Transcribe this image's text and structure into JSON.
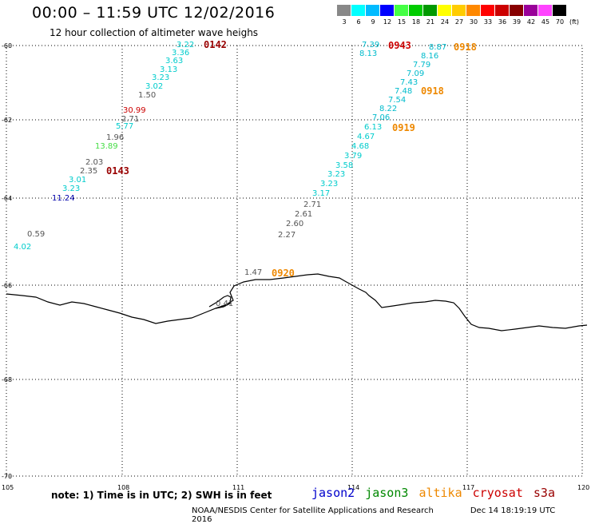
{
  "header": {
    "title": "00:00 – 11:59 UTC 12/02/2016",
    "subtitle": "12 hour collection of altimeter wave heighs"
  },
  "scale": {
    "colors": [
      "#888888",
      "#00ffff",
      "#00bbff",
      "#0000ff",
      "#44ff44",
      "#00cc00",
      "#009900",
      "#ffff00",
      "#ffcc00",
      "#ff8800",
      "#ff0000",
      "#cc0000",
      "#880000",
      "#990099",
      "#ff44ff",
      "#000000"
    ],
    "labels": [
      "3",
      "6",
      "9",
      "12",
      "15",
      "18",
      "21",
      "24",
      "27",
      "30",
      "33",
      "36",
      "39",
      "42",
      "45",
      "70",
      "(ft)"
    ]
  },
  "axes": {
    "lon_ticks": [
      "105",
      "108",
      "111",
      "114",
      "117",
      "120"
    ],
    "lat_ticks": [
      "-60",
      "-62",
      "-64",
      "-66",
      "-68",
      "-70"
    ]
  },
  "tracks": [
    {
      "v": "3.22",
      "c": "#00cccc"
    },
    {
      "v": "3.36",
      "c": "#00cccc"
    },
    {
      "v": "3.63",
      "c": "#00cccc"
    },
    {
      "v": "3.13",
      "c": "#00cccc"
    },
    {
      "v": "3.23",
      "c": "#00cccc"
    },
    {
      "v": "3.02",
      "c": "#00cccc"
    },
    {
      "v": "1.50",
      "c": "#555555"
    },
    {
      "v": "30.99",
      "c": "#cc0000"
    },
    {
      "v": "2.71",
      "c": "#555555"
    },
    {
      "v": "5.77",
      "c": "#00cccc"
    },
    {
      "v": "1.96",
      "c": "#555555"
    },
    {
      "v": "13.89",
      "c": "#44dd44"
    },
    {
      "v": "2.03",
      "c": "#555555"
    },
    {
      "v": "2.35",
      "c": "#555555"
    },
    {
      "v": "3.01",
      "c": "#00cccc"
    },
    {
      "v": "3.23",
      "c": "#00cccc"
    },
    {
      "v": "11.24",
      "c": "#0000aa"
    },
    {
      "v": "0.59",
      "c": "#555555"
    },
    {
      "v": "4.02",
      "c": "#00cccc"
    },
    {
      "v": "7.39",
      "c": "#00bbcc"
    },
    {
      "v": "8.13",
      "c": "#00bbcc"
    },
    {
      "v": "8.87",
      "c": "#00bbcc"
    },
    {
      "v": "8.16",
      "c": "#00bbcc"
    },
    {
      "v": "7.79",
      "c": "#00bbcc"
    },
    {
      "v": "7.09",
      "c": "#00bbcc"
    },
    {
      "v": "7.43",
      "c": "#00bbcc"
    },
    {
      "v": "7.48",
      "c": "#00bbcc"
    },
    {
      "v": "7.54",
      "c": "#00bbcc"
    },
    {
      "v": "8.22",
      "c": "#00bbcc"
    },
    {
      "v": "7.06",
      "c": "#00bbcc"
    },
    {
      "v": "6.13",
      "c": "#00cccc"
    },
    {
      "v": "4.67",
      "c": "#00cccc"
    },
    {
      "v": "4.68",
      "c": "#00cccc"
    },
    {
      "v": "3.79",
      "c": "#00cccc"
    },
    {
      "v": "3.58",
      "c": "#00cccc"
    },
    {
      "v": "3.23",
      "c": "#00cccc"
    },
    {
      "v": "3.23",
      "c": "#00cccc"
    },
    {
      "v": "3.17",
      "c": "#00cccc"
    },
    {
      "v": "2.71",
      "c": "#555555"
    },
    {
      "v": "2.61",
      "c": "#555555"
    },
    {
      "v": "2.60",
      "c": "#555555"
    },
    {
      "v": "2.27",
      "c": "#555555"
    },
    {
      "v": "1.47",
      "c": "#555555"
    },
    {
      "v": "0.41",
      "c": "#555555"
    }
  ],
  "pass_times": [
    {
      "t": "0142",
      "c": "#990000"
    },
    {
      "t": "0143",
      "c": "#990000"
    },
    {
      "t": "0943",
      "c": "#cc0000"
    },
    {
      "t": "0918",
      "c": "#ee8800"
    },
    {
      "t": "0918",
      "c": "#ee8800"
    },
    {
      "t": "0919",
      "c": "#ee8800"
    },
    {
      "t": "0920",
      "c": "#ee8800"
    }
  ],
  "footer": {
    "note": "note: 1) Time is in UTC; 2) SWH is in feet",
    "legend": [
      {
        "name": "jason2",
        "color": "#0000cc"
      },
      {
        "name": "jason3",
        "color": "#008800"
      },
      {
        "name": "altika",
        "color": "#ee8800"
      },
      {
        "name": "cryosat",
        "color": "#cc0000"
      },
      {
        "name": "s3a",
        "color": "#990000"
      }
    ],
    "credit": "NOAA/NESDIS Center for Satellite Applications and Research",
    "timestamp": "Dec 14 18:19:19 UTC 2016"
  }
}
